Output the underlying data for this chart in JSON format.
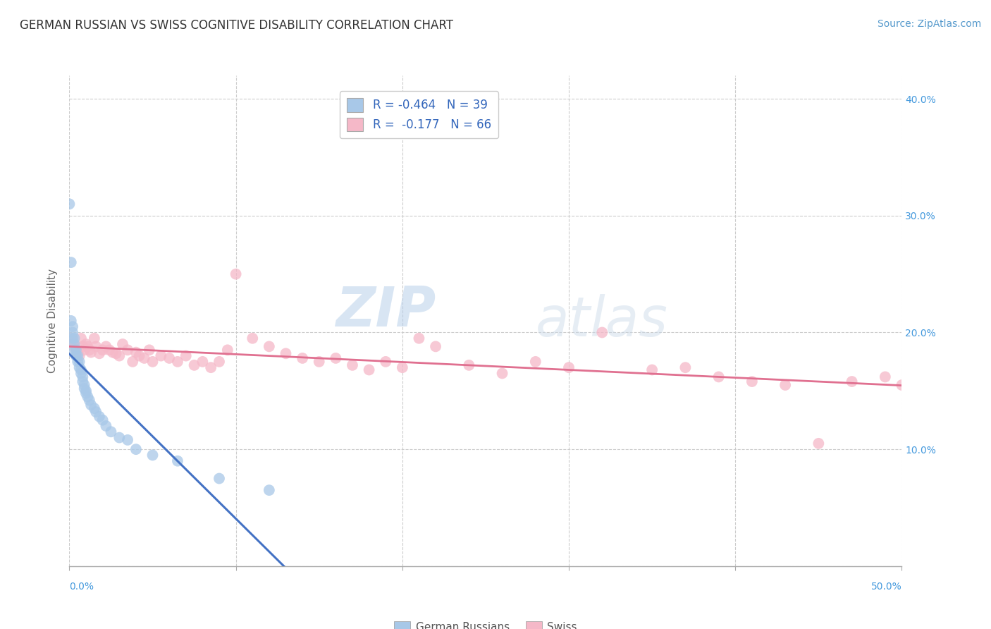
{
  "title": "GERMAN RUSSIAN VS SWISS COGNITIVE DISABILITY CORRELATION CHART",
  "source": "Source: ZipAtlas.com",
  "ylabel": "Cognitive Disability",
  "xlim": [
    0.0,
    0.5
  ],
  "ylim": [
    0.0,
    0.42
  ],
  "xticks": [
    0.0,
    0.1,
    0.2,
    0.3,
    0.4,
    0.5
  ],
  "yticks": [
    0.0,
    0.1,
    0.2,
    0.3,
    0.4
  ],
  "xticklabels_bottom": [
    "0.0%",
    "50.0%"
  ],
  "ytick_labels_right": [
    "10.0%",
    "20.0%",
    "30.0%",
    "40.0%"
  ],
  "background_color": "#ffffff",
  "grid_color": "#cccccc",
  "blue_color": "#a8c8e8",
  "blue_edge_color": "#7aaedb",
  "blue_line_color": "#4472c4",
  "pink_color": "#f5b8c8",
  "pink_edge_color": "#e896aa",
  "pink_line_color": "#e07090",
  "legend_label_blue": "German Russians",
  "legend_label_pink": "Swiss",
  "legend_R_blue": "R = -0.464",
  "legend_N_blue": "N = 39",
  "legend_R_pink": "R =  -0.177",
  "legend_N_pink": "N = 66",
  "watermark_zip": "ZIP",
  "watermark_atlas": "atlas",
  "blue_x": [
    0.0,
    0.001,
    0.001,
    0.002,
    0.002,
    0.002,
    0.003,
    0.003,
    0.003,
    0.004,
    0.004,
    0.005,
    0.005,
    0.006,
    0.006,
    0.007,
    0.007,
    0.008,
    0.008,
    0.009,
    0.009,
    0.01,
    0.01,
    0.011,
    0.012,
    0.013,
    0.015,
    0.016,
    0.018,
    0.02,
    0.022,
    0.025,
    0.03,
    0.035,
    0.04,
    0.05,
    0.065,
    0.09,
    0.12
  ],
  "blue_y": [
    0.31,
    0.26,
    0.21,
    0.205,
    0.2,
    0.195,
    0.195,
    0.19,
    0.185,
    0.185,
    0.18,
    0.18,
    0.175,
    0.175,
    0.17,
    0.168,
    0.165,
    0.162,
    0.158,
    0.155,
    0.152,
    0.15,
    0.148,
    0.145,
    0.142,
    0.138,
    0.135,
    0.132,
    0.128,
    0.125,
    0.12,
    0.115,
    0.11,
    0.108,
    0.1,
    0.095,
    0.09,
    0.075,
    0.065
  ],
  "pink_x": [
    0.001,
    0.002,
    0.003,
    0.004,
    0.005,
    0.006,
    0.007,
    0.008,
    0.009,
    0.01,
    0.011,
    0.012,
    0.013,
    0.015,
    0.016,
    0.018,
    0.02,
    0.022,
    0.024,
    0.026,
    0.028,
    0.03,
    0.032,
    0.035,
    0.038,
    0.04,
    0.042,
    0.045,
    0.048,
    0.05,
    0.055,
    0.06,
    0.065,
    0.07,
    0.075,
    0.08,
    0.085,
    0.09,
    0.095,
    0.1,
    0.11,
    0.12,
    0.13,
    0.14,
    0.15,
    0.16,
    0.17,
    0.18,
    0.19,
    0.2,
    0.21,
    0.22,
    0.24,
    0.26,
    0.28,
    0.3,
    0.32,
    0.35,
    0.37,
    0.39,
    0.41,
    0.43,
    0.45,
    0.47,
    0.49,
    0.5
  ],
  "pink_y": [
    0.195,
    0.19,
    0.188,
    0.185,
    0.183,
    0.18,
    0.195,
    0.188,
    0.185,
    0.19,
    0.188,
    0.185,
    0.183,
    0.195,
    0.188,
    0.182,
    0.185,
    0.188,
    0.185,
    0.183,
    0.182,
    0.18,
    0.19,
    0.185,
    0.175,
    0.183,
    0.18,
    0.178,
    0.185,
    0.175,
    0.18,
    0.178,
    0.175,
    0.18,
    0.172,
    0.175,
    0.17,
    0.175,
    0.185,
    0.25,
    0.195,
    0.188,
    0.182,
    0.178,
    0.175,
    0.178,
    0.172,
    0.168,
    0.175,
    0.17,
    0.195,
    0.188,
    0.172,
    0.165,
    0.175,
    0.17,
    0.2,
    0.168,
    0.17,
    0.162,
    0.158,
    0.155,
    0.105,
    0.158,
    0.162,
    0.155
  ]
}
